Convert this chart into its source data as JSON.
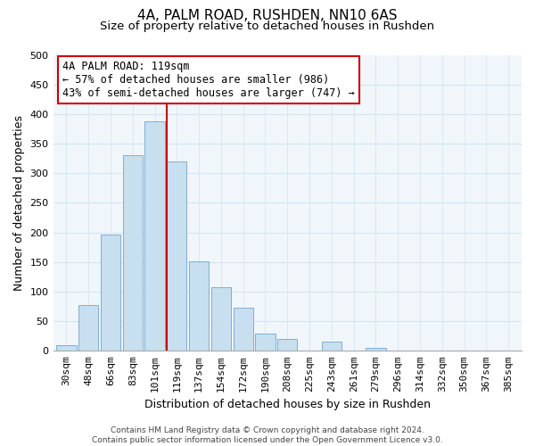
{
  "title": "4A, PALM ROAD, RUSHDEN, NN10 6AS",
  "subtitle": "Size of property relative to detached houses in Rushden",
  "xlabel": "Distribution of detached houses by size in Rushden",
  "ylabel": "Number of detached properties",
  "bar_labels": [
    "30sqm",
    "48sqm",
    "66sqm",
    "83sqm",
    "101sqm",
    "119sqm",
    "137sqm",
    "154sqm",
    "172sqm",
    "190sqm",
    "208sqm",
    "225sqm",
    "243sqm",
    "261sqm",
    "279sqm",
    "296sqm",
    "314sqm",
    "332sqm",
    "350sqm",
    "367sqm",
    "385sqm"
  ],
  "bar_values": [
    10,
    78,
    197,
    330,
    387,
    320,
    151,
    107,
    73,
    29,
    20,
    0,
    15,
    0,
    5,
    0,
    0,
    0,
    0,
    0,
    0
  ],
  "bar_color": "#c8dff0",
  "bar_edge_color": "#7aafd4",
  "vline_color": "#cc0000",
  "ylim": [
    0,
    500
  ],
  "yticks": [
    0,
    50,
    100,
    150,
    200,
    250,
    300,
    350,
    400,
    450,
    500
  ],
  "annotation_title": "4A PALM ROAD: 119sqm",
  "annotation_line1": "← 57% of detached houses are smaller (986)",
  "annotation_line2": "43% of semi-detached houses are larger (747) →",
  "annotation_box_color": "#ffffff",
  "annotation_box_edge": "#cc0000",
  "footer_line1": "Contains HM Land Registry data © Crown copyright and database right 2024.",
  "footer_line2": "Contains public sector information licensed under the Open Government Licence v3.0.",
  "title_fontsize": 11,
  "subtitle_fontsize": 9.5,
  "axis_label_fontsize": 9,
  "tick_fontsize": 8,
  "annotation_fontsize": 8.5,
  "footer_fontsize": 6.5,
  "grid_color": "#d0e4f0",
  "background_color": "#ffffff"
}
